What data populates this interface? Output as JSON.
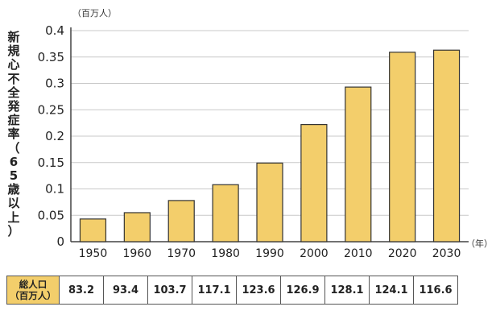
{
  "chart_data": {
    "type": "bar",
    "ylabel": "新規心不全発症率（65歳以上）",
    "y_unit": "（百万人）",
    "x_unit": "（年）",
    "ylim": [
      0,
      0.4
    ],
    "yticks": [
      "0",
      "0.05",
      "0.1",
      "0.15",
      "0.2",
      "0.25",
      "0.3",
      "0.35",
      "0.4"
    ],
    "grid": true,
    "bar_color": "#f3ce6b",
    "categories": [
      "1950",
      "1960",
      "1970",
      "1980",
      "1990",
      "2000",
      "2010",
      "2020",
      "2030"
    ],
    "values": [
      0.043,
      0.055,
      0.078,
      0.108,
      0.149,
      0.222,
      0.293,
      0.359,
      0.363
    ]
  },
  "table": {
    "header": [
      "総人口",
      "（百万人）"
    ],
    "values": [
      "83.2",
      "93.4",
      "103.7",
      "117.1",
      "123.6",
      "126.9",
      "128.1",
      "124.1",
      "116.6"
    ]
  }
}
